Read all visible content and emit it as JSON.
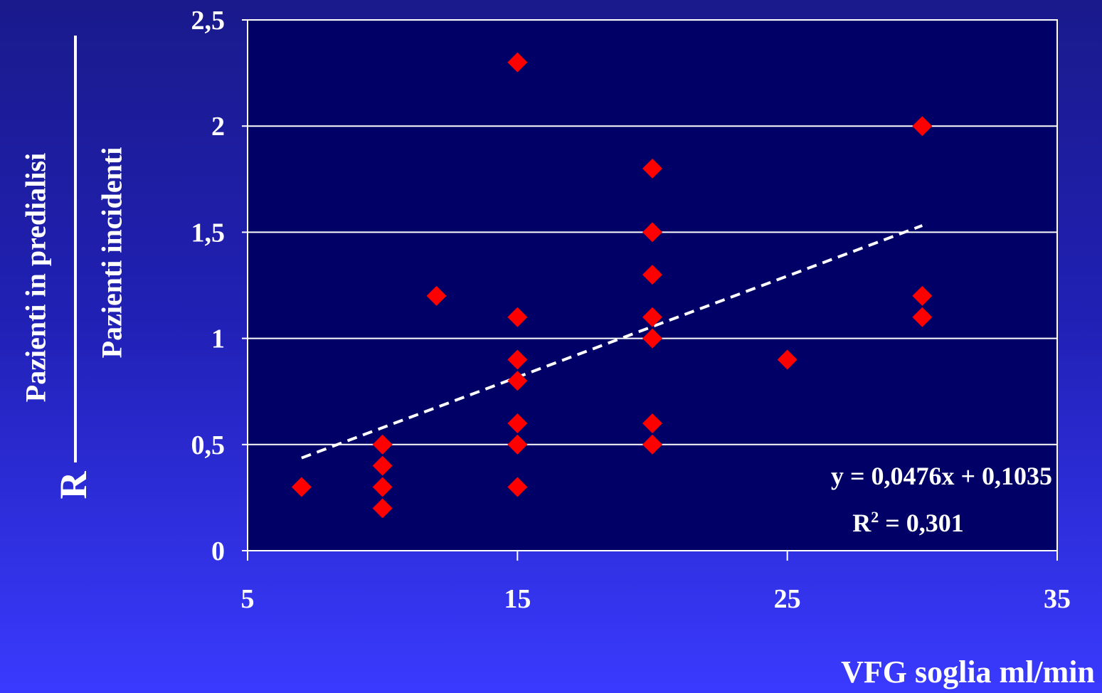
{
  "chart_data": {
    "type": "scatter",
    "xlabel": "VFG soglia ml/min",
    "ylabel_numerator": "Pazienti in predialisi",
    "ylabel_denominator": "Pazienti incidenti",
    "ylabel_prefix": "R",
    "xlim": [
      5,
      35
    ],
    "ylim": [
      0,
      2.5
    ],
    "x_ticks": [
      "5",
      "15",
      "25",
      "35"
    ],
    "y_ticks": [
      "0",
      "0,5",
      "1",
      "1,5",
      "2",
      "2,5"
    ],
    "grid": "horizontal",
    "series": [
      {
        "points": [
          {
            "x": 7,
            "y": 0.3
          },
          {
            "x": 10,
            "y": 0.5
          },
          {
            "x": 10,
            "y": 0.4
          },
          {
            "x": 10,
            "y": 0.3
          },
          {
            "x": 10,
            "y": 0.2
          },
          {
            "x": 12,
            "y": 1.2
          },
          {
            "x": 15,
            "y": 2.3
          },
          {
            "x": 15,
            "y": 1.1
          },
          {
            "x": 15,
            "y": 0.9
          },
          {
            "x": 15,
            "y": 0.8
          },
          {
            "x": 15,
            "y": 0.6
          },
          {
            "x": 15,
            "y": 0.5
          },
          {
            "x": 15,
            "y": 0.3
          },
          {
            "x": 20,
            "y": 1.8
          },
          {
            "x": 20,
            "y": 1.5
          },
          {
            "x": 20,
            "y": 1.3
          },
          {
            "x": 20,
            "y": 1.1
          },
          {
            "x": 20,
            "y": 1.0
          },
          {
            "x": 20,
            "y": 0.6
          },
          {
            "x": 20,
            "y": 0.5
          },
          {
            "x": 25,
            "y": 0.9
          },
          {
            "x": 30,
            "y": 2.0
          },
          {
            "x": 30,
            "y": 1.2
          },
          {
            "x": 30,
            "y": 1.1
          }
        ]
      }
    ],
    "trendline": {
      "slope": 0.0476,
      "intercept": 0.1035,
      "x_range": [
        7,
        30
      ],
      "equation": "y = 0,0476x + 0,1035",
      "r2_label": "R",
      "r2_sup": "2",
      "r2_value": " = 0,301"
    },
    "colors": {
      "plot_background": "#000066",
      "marker": "#ff0000",
      "grid": "#ffffff",
      "trendline": "#ffffff"
    }
  }
}
